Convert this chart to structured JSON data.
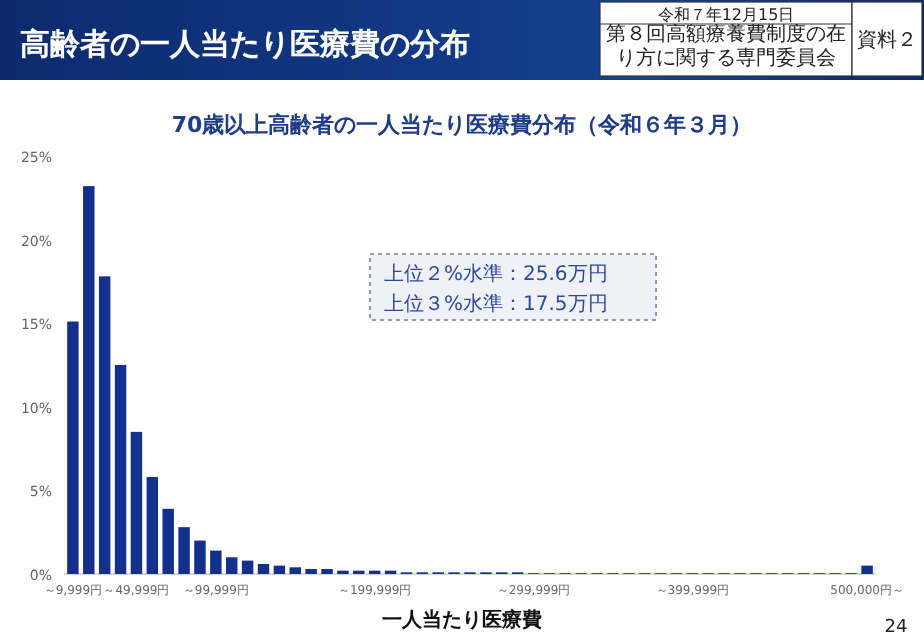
{
  "chart_data": {
    "type": "bar",
    "title": "高齢者の一人当たり医療費の分布",
    "subtitle": "70歳以上高齢者の一人当たり医療費分布（令和６年３月）",
    "xlabel": "一人当たり医療費",
    "categories": [
      "～9,999円",
      null,
      null,
      null,
      "～49,999円",
      null,
      null,
      null,
      null,
      "～99,999円",
      null,
      null,
      null,
      null,
      null,
      null,
      null,
      null,
      null,
      "～199,999円",
      null,
      null,
      null,
      null,
      null,
      null,
      null,
      null,
      null,
      "～299,999円",
      null,
      null,
      null,
      null,
      null,
      null,
      null,
      null,
      null,
      "～399,999円",
      null,
      null,
      null,
      null,
      null,
      null,
      null,
      null,
      null,
      null,
      "500,000円～"
    ],
    "values": [
      15.1,
      23.2,
      17.8,
      12.5,
      8.5,
      5.8,
      3.9,
      2.8,
      2.0,
      1.4,
      1.0,
      0.8,
      0.6,
      0.5,
      0.4,
      0.3,
      0.3,
      0.2,
      0.2,
      0.2,
      0.2,
      0.1,
      0.1,
      0.1,
      0.1,
      0.1,
      0.1,
      0.1,
      0.1,
      0.05,
      0.05,
      0.05,
      0.05,
      0.05,
      0.05,
      0.05,
      0.05,
      0.05,
      0.05,
      0.05,
      0.05,
      0.05,
      0.05,
      0.05,
      0.05,
      0.05,
      0.05,
      0.05,
      0.05,
      0.05,
      0.5
    ],
    "color": "#12308c",
    "ylim": [
      0,
      25
    ],
    "yticks": [
      {
        "value": 0,
        "label": "0%"
      },
      {
        "value": 5,
        "label": "5%"
      },
      {
        "value": 10,
        "label": "10%"
      },
      {
        "value": 15,
        "label": "15%"
      },
      {
        "value": 20,
        "label": "20%"
      },
      {
        "value": 25,
        "label": "25%"
      }
    ],
    "grid": false,
    "annotations": [
      "上位２%水準：25.6万円",
      "上位３%水準：17.5万円",
      "令和７年12月15日",
      "第８回高額療養費制度の在り方に関する専門委員会",
      "資料２",
      "24"
    ]
  }
}
